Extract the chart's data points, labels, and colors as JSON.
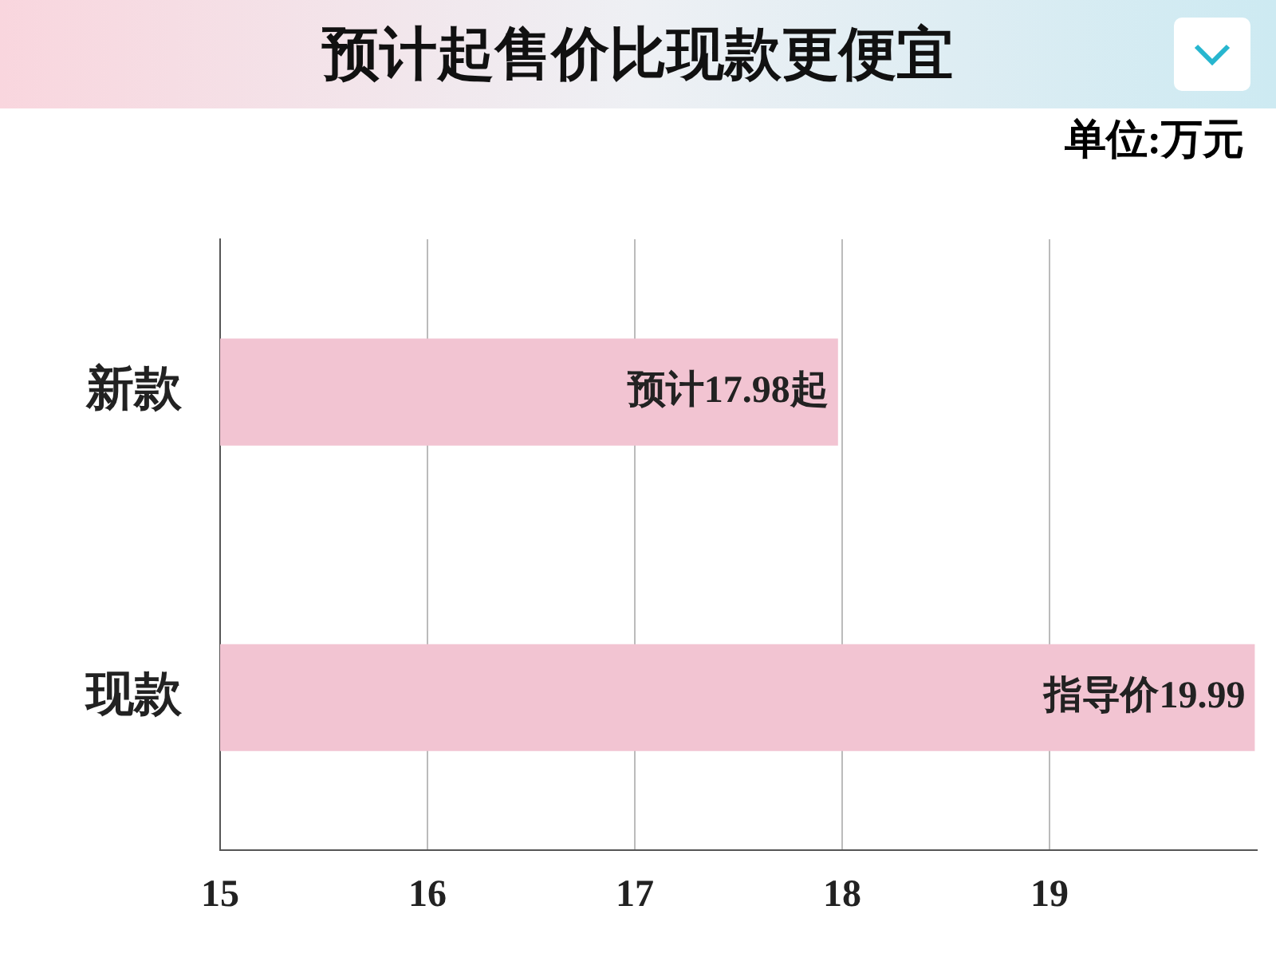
{
  "chart_data": {
    "type": "bar",
    "orientation": "horizontal",
    "title": "预计起售价比现款更便宜",
    "annotations": [
      "单位:万元"
    ],
    "categories": [
      "新款",
      "现款"
    ],
    "values": [
      17.98,
      19.99
    ],
    "color": "#f2c4d2",
    "value_labels": [
      "预计17.98起",
      "指导价19.99"
    ],
    "xlim": [
      15,
      20
    ],
    "xticks": [
      15,
      16,
      17,
      18,
      19
    ],
    "grid": "x",
    "legend": false
  }
}
